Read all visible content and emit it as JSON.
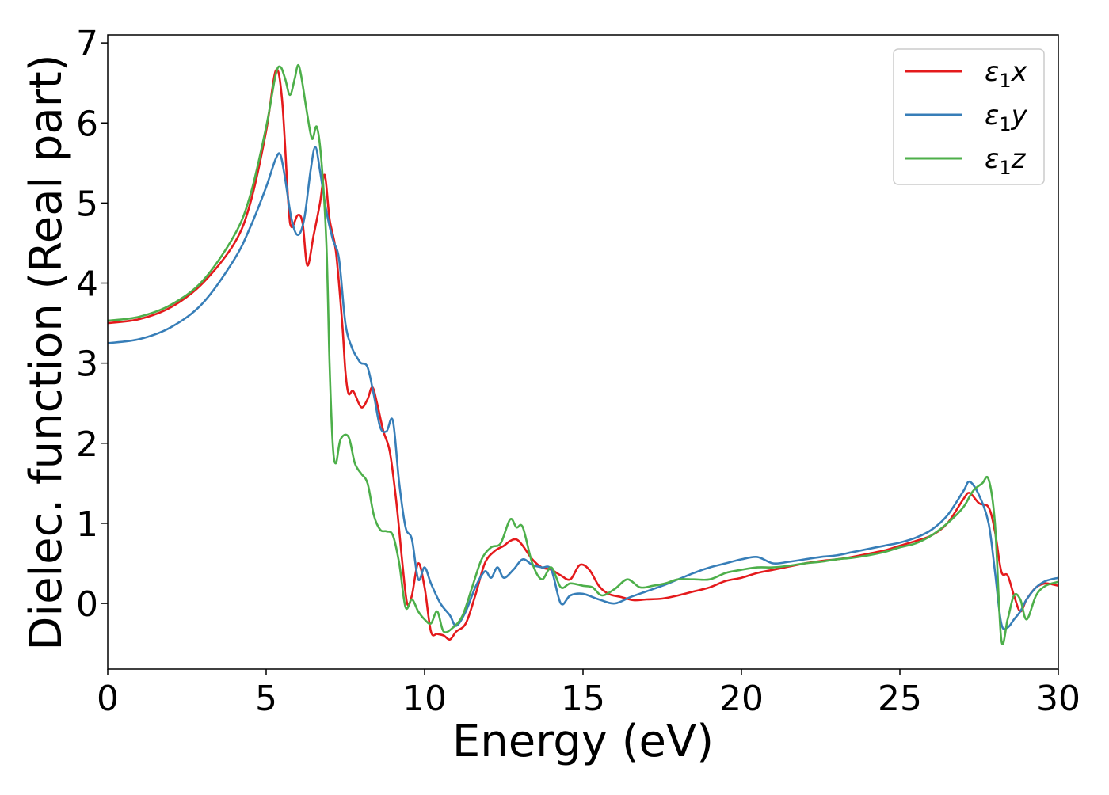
{
  "chart_data": {
    "type": "line",
    "xlabel": "Energy (eV)",
    "ylabel": "Dielec. function (Real part)",
    "xlim": [
      0,
      30
    ],
    "ylim": [
      -0.82,
      7.1
    ],
    "xticks": [
      "0",
      "5",
      "10",
      "15",
      "20",
      "25",
      "30"
    ],
    "yticks": [
      "0",
      "1",
      "2",
      "3",
      "4",
      "5",
      "6",
      "7"
    ],
    "grid": false,
    "legend_position": "top-right",
    "series": [
      {
        "name": "ε1x",
        "name_base": "ε",
        "name_sub": "1",
        "name_tail": "x",
        "color": "#e41a1c",
        "points": [
          [
            0,
            3.5
          ],
          [
            1,
            3.55
          ],
          [
            2,
            3.7
          ],
          [
            3,
            4.0
          ],
          [
            4,
            4.5
          ],
          [
            4.5,
            5.0
          ],
          [
            5,
            5.9
          ],
          [
            5.3,
            6.65
          ],
          [
            5.5,
            6.3
          ],
          [
            5.7,
            5.0
          ],
          [
            5.8,
            4.7
          ],
          [
            6.0,
            4.85
          ],
          [
            6.15,
            4.75
          ],
          [
            6.3,
            4.22
          ],
          [
            6.5,
            4.6
          ],
          [
            6.7,
            5.0
          ],
          [
            6.85,
            5.35
          ],
          [
            7.0,
            4.8
          ],
          [
            7.2,
            4.4
          ],
          [
            7.4,
            3.5
          ],
          [
            7.5,
            2.9
          ],
          [
            7.6,
            2.62
          ],
          [
            7.75,
            2.65
          ],
          [
            8.0,
            2.45
          ],
          [
            8.2,
            2.55
          ],
          [
            8.35,
            2.7
          ],
          [
            8.5,
            2.5
          ],
          [
            8.7,
            2.15
          ],
          [
            8.9,
            1.9
          ],
          [
            9.1,
            1.3
          ],
          [
            9.3,
            0.5
          ],
          [
            9.45,
            0.0
          ],
          [
            9.6,
            0.1
          ],
          [
            9.8,
            0.5
          ],
          [
            10.0,
            0.2
          ],
          [
            10.2,
            -0.35
          ],
          [
            10.4,
            -0.38
          ],
          [
            10.6,
            -0.4
          ],
          [
            10.8,
            -0.45
          ],
          [
            11.0,
            -0.35
          ],
          [
            11.3,
            -0.25
          ],
          [
            11.6,
            0.1
          ],
          [
            11.9,
            0.5
          ],
          [
            12.2,
            0.65
          ],
          [
            12.5,
            0.72
          ],
          [
            12.7,
            0.78
          ],
          [
            12.9,
            0.8
          ],
          [
            13.1,
            0.72
          ],
          [
            13.4,
            0.55
          ],
          [
            13.7,
            0.45
          ],
          [
            14.0,
            0.42
          ],
          [
            14.3,
            0.35
          ],
          [
            14.6,
            0.3
          ],
          [
            14.9,
            0.48
          ],
          [
            15.2,
            0.42
          ],
          [
            15.5,
            0.22
          ],
          [
            15.8,
            0.12
          ],
          [
            16.2,
            0.08
          ],
          [
            16.6,
            0.04
          ],
          [
            17.0,
            0.05
          ],
          [
            17.5,
            0.06
          ],
          [
            18.0,
            0.1
          ],
          [
            18.5,
            0.15
          ],
          [
            19.0,
            0.2
          ],
          [
            19.5,
            0.28
          ],
          [
            20.0,
            0.32
          ],
          [
            20.5,
            0.38
          ],
          [
            21.0,
            0.42
          ],
          [
            21.5,
            0.46
          ],
          [
            22.0,
            0.5
          ],
          [
            22.5,
            0.53
          ],
          [
            23.0,
            0.55
          ],
          [
            23.5,
            0.58
          ],
          [
            24.0,
            0.62
          ],
          [
            24.5,
            0.66
          ],
          [
            25.0,
            0.72
          ],
          [
            25.5,
            0.78
          ],
          [
            26.0,
            0.85
          ],
          [
            26.5,
            1.0
          ],
          [
            27.0,
            1.3
          ],
          [
            27.2,
            1.38
          ],
          [
            27.5,
            1.25
          ],
          [
            27.8,
            1.2
          ],
          [
            28.0,
            0.9
          ],
          [
            28.2,
            0.4
          ],
          [
            28.4,
            0.35
          ],
          [
            28.6,
            0.1
          ],
          [
            28.8,
            -0.1
          ],
          [
            29.0,
            0.05
          ],
          [
            29.3,
            0.2
          ],
          [
            29.6,
            0.25
          ],
          [
            30.0,
            0.22
          ]
        ]
      },
      {
        "name": "ε1y",
        "name_base": "ε",
        "name_sub": "1",
        "name_tail": "y",
        "color": "#377eb8",
        "points": [
          [
            0,
            3.25
          ],
          [
            1,
            3.3
          ],
          [
            2,
            3.45
          ],
          [
            3,
            3.75
          ],
          [
            4,
            4.3
          ],
          [
            4.5,
            4.7
          ],
          [
            5,
            5.2
          ],
          [
            5.3,
            5.55
          ],
          [
            5.45,
            5.6
          ],
          [
            5.6,
            5.3
          ],
          [
            5.8,
            4.8
          ],
          [
            6.0,
            4.6
          ],
          [
            6.2,
            4.8
          ],
          [
            6.4,
            5.4
          ],
          [
            6.55,
            5.7
          ],
          [
            6.7,
            5.4
          ],
          [
            6.9,
            4.9
          ],
          [
            7.1,
            4.55
          ],
          [
            7.3,
            4.3
          ],
          [
            7.5,
            3.5
          ],
          [
            7.7,
            3.2
          ],
          [
            7.9,
            3.05
          ],
          [
            8.0,
            3.0
          ],
          [
            8.2,
            2.95
          ],
          [
            8.4,
            2.6
          ],
          [
            8.6,
            2.2
          ],
          [
            8.8,
            2.15
          ],
          [
            9.0,
            2.28
          ],
          [
            9.2,
            1.5
          ],
          [
            9.4,
            0.95
          ],
          [
            9.6,
            0.8
          ],
          [
            9.8,
            0.3
          ],
          [
            10.0,
            0.45
          ],
          [
            10.2,
            0.25
          ],
          [
            10.5,
            0.0
          ],
          [
            10.8,
            -0.15
          ],
          [
            11.0,
            -0.28
          ],
          [
            11.3,
            -0.1
          ],
          [
            11.6,
            0.2
          ],
          [
            11.9,
            0.4
          ],
          [
            12.1,
            0.32
          ],
          [
            12.3,
            0.45
          ],
          [
            12.5,
            0.32
          ],
          [
            12.8,
            0.42
          ],
          [
            13.1,
            0.55
          ],
          [
            13.4,
            0.48
          ],
          [
            13.7,
            0.45
          ],
          [
            14.0,
            0.42
          ],
          [
            14.3,
            0.0
          ],
          [
            14.6,
            0.1
          ],
          [
            15.0,
            0.12
          ],
          [
            15.5,
            0.05
          ],
          [
            16.0,
            0.0
          ],
          [
            16.5,
            0.08
          ],
          [
            17.0,
            0.15
          ],
          [
            17.5,
            0.22
          ],
          [
            18.0,
            0.3
          ],
          [
            18.5,
            0.38
          ],
          [
            19.0,
            0.45
          ],
          [
            19.5,
            0.5
          ],
          [
            20.0,
            0.55
          ],
          [
            20.5,
            0.58
          ],
          [
            21.0,
            0.5
          ],
          [
            21.5,
            0.52
          ],
          [
            22.0,
            0.55
          ],
          [
            22.5,
            0.58
          ],
          [
            23.0,
            0.6
          ],
          [
            23.5,
            0.64
          ],
          [
            24.0,
            0.68
          ],
          [
            24.5,
            0.72
          ],
          [
            25.0,
            0.76
          ],
          [
            25.5,
            0.82
          ],
          [
            26.0,
            0.92
          ],
          [
            26.5,
            1.1
          ],
          [
            27.0,
            1.4
          ],
          [
            27.2,
            1.52
          ],
          [
            27.5,
            1.35
          ],
          [
            27.8,
            1.0
          ],
          [
            28.0,
            0.4
          ],
          [
            28.2,
            -0.25
          ],
          [
            28.4,
            -0.3
          ],
          [
            28.6,
            -0.2
          ],
          [
            28.8,
            -0.1
          ],
          [
            29.0,
            0.05
          ],
          [
            29.3,
            0.2
          ],
          [
            29.6,
            0.28
          ],
          [
            30.0,
            0.32
          ]
        ]
      },
      {
        "name": "ε1z",
        "name_base": "ε",
        "name_sub": "1",
        "name_tail": "z",
        "color": "#4daf4a",
        "points": [
          [
            0,
            3.53
          ],
          [
            1,
            3.58
          ],
          [
            2,
            3.73
          ],
          [
            3,
            4.03
          ],
          [
            4,
            4.6
          ],
          [
            4.5,
            5.1
          ],
          [
            5,
            5.95
          ],
          [
            5.3,
            6.6
          ],
          [
            5.45,
            6.7
          ],
          [
            5.6,
            6.55
          ],
          [
            5.75,
            6.35
          ],
          [
            5.9,
            6.55
          ],
          [
            6.0,
            6.72
          ],
          [
            6.1,
            6.6
          ],
          [
            6.3,
            6.1
          ],
          [
            6.45,
            5.8
          ],
          [
            6.6,
            5.95
          ],
          [
            6.75,
            5.5
          ],
          [
            6.9,
            4.5
          ],
          [
            7.0,
            3.0
          ],
          [
            7.1,
            2.0
          ],
          [
            7.2,
            1.75
          ],
          [
            7.35,
            2.05
          ],
          [
            7.6,
            2.08
          ],
          [
            7.8,
            1.75
          ],
          [
            8.0,
            1.62
          ],
          [
            8.2,
            1.5
          ],
          [
            8.4,
            1.1
          ],
          [
            8.6,
            0.92
          ],
          [
            8.8,
            0.9
          ],
          [
            9.0,
            0.85
          ],
          [
            9.2,
            0.5
          ],
          [
            9.4,
            -0.05
          ],
          [
            9.6,
            0.05
          ],
          [
            9.8,
            -0.1
          ],
          [
            10.0,
            -0.2
          ],
          [
            10.2,
            -0.25
          ],
          [
            10.4,
            -0.1
          ],
          [
            10.6,
            -0.35
          ],
          [
            10.9,
            -0.3
          ],
          [
            11.2,
            -0.15
          ],
          [
            11.5,
            0.2
          ],
          [
            11.8,
            0.55
          ],
          [
            12.1,
            0.7
          ],
          [
            12.4,
            0.75
          ],
          [
            12.7,
            1.05
          ],
          [
            12.9,
            0.95
          ],
          [
            13.1,
            0.95
          ],
          [
            13.4,
            0.5
          ],
          [
            13.7,
            0.3
          ],
          [
            14.0,
            0.45
          ],
          [
            14.3,
            0.2
          ],
          [
            14.6,
            0.25
          ],
          [
            15.0,
            0.22
          ],
          [
            15.3,
            0.2
          ],
          [
            15.6,
            0.1
          ],
          [
            16.0,
            0.18
          ],
          [
            16.4,
            0.3
          ],
          [
            16.8,
            0.2
          ],
          [
            17.2,
            0.22
          ],
          [
            17.6,
            0.25
          ],
          [
            18.0,
            0.3
          ],
          [
            18.5,
            0.3
          ],
          [
            19.0,
            0.3
          ],
          [
            19.5,
            0.38
          ],
          [
            20.0,
            0.42
          ],
          [
            20.5,
            0.45
          ],
          [
            21.0,
            0.45
          ],
          [
            21.5,
            0.47
          ],
          [
            22.0,
            0.5
          ],
          [
            22.5,
            0.52
          ],
          [
            23.0,
            0.55
          ],
          [
            23.5,
            0.57
          ],
          [
            24.0,
            0.6
          ],
          [
            24.5,
            0.64
          ],
          [
            25.0,
            0.7
          ],
          [
            25.5,
            0.75
          ],
          [
            26.0,
            0.85
          ],
          [
            26.5,
            1.0
          ],
          [
            27.0,
            1.2
          ],
          [
            27.3,
            1.4
          ],
          [
            27.6,
            1.5
          ],
          [
            27.8,
            1.55
          ],
          [
            28.0,
            1.0
          ],
          [
            28.2,
            -0.45
          ],
          [
            28.4,
            -0.2
          ],
          [
            28.6,
            0.1
          ],
          [
            28.8,
            0.05
          ],
          [
            29.0,
            -0.2
          ],
          [
            29.3,
            0.1
          ],
          [
            29.6,
            0.22
          ],
          [
            30.0,
            0.27
          ]
        ]
      }
    ]
  }
}
